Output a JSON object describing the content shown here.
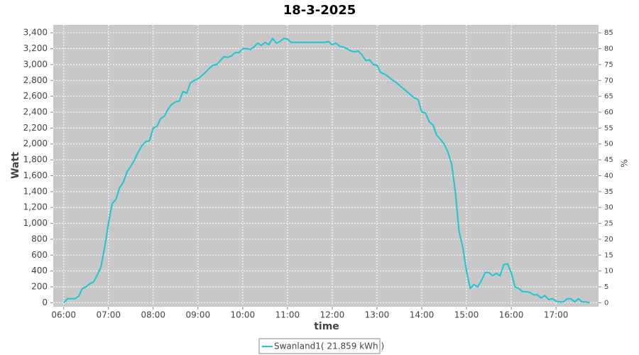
{
  "chart_data": {
    "type": "line",
    "title": "18-3-2025",
    "x_label": "time",
    "y_label": "Watt",
    "y2_label": "%",
    "x": [
      "06:00",
      "06:05",
      "06:10",
      "06:15",
      "06:20",
      "06:25",
      "06:30",
      "06:35",
      "06:40",
      "06:45",
      "06:50",
      "06:55",
      "07:00",
      "07:05",
      "07:10",
      "07:15",
      "07:20",
      "07:25",
      "07:30",
      "07:35",
      "07:40",
      "07:45",
      "07:50",
      "07:55",
      "08:00",
      "08:05",
      "08:10",
      "08:15",
      "08:20",
      "08:25",
      "08:30",
      "08:35",
      "08:40",
      "08:45",
      "08:50",
      "08:55",
      "09:00",
      "09:05",
      "09:10",
      "09:15",
      "09:20",
      "09:25",
      "09:30",
      "09:35",
      "09:40",
      "09:45",
      "09:50",
      "09:55",
      "10:00",
      "10:05",
      "10:10",
      "10:15",
      "10:20",
      "10:25",
      "10:30",
      "10:35",
      "10:40",
      "10:45",
      "10:50",
      "10:55",
      "11:00",
      "11:05",
      "11:10",
      "11:15",
      "11:20",
      "11:25",
      "11:30",
      "11:35",
      "11:40",
      "11:45",
      "11:50",
      "11:55",
      "12:00",
      "12:05",
      "12:10",
      "12:15",
      "12:20",
      "12:25",
      "12:30",
      "12:35",
      "12:40",
      "12:45",
      "12:50",
      "12:55",
      "13:00",
      "13:05",
      "13:10",
      "13:15",
      "13:20",
      "13:25",
      "13:30",
      "13:35",
      "13:40",
      "13:45",
      "13:50",
      "13:55",
      "14:00",
      "14:05",
      "14:10",
      "14:15",
      "14:20",
      "14:25",
      "14:30",
      "14:35",
      "14:40",
      "14:45",
      "14:50",
      "14:55",
      "15:00",
      "15:05",
      "15:10",
      "15:15",
      "15:20",
      "15:25",
      "15:30",
      "15:35",
      "15:40",
      "15:45",
      "15:50",
      "15:55",
      "16:00",
      "16:05",
      "16:10",
      "16:15",
      "16:20",
      "16:25",
      "16:30",
      "16:35",
      "16:40",
      "16:45",
      "16:50",
      "16:55",
      "17:00",
      "17:05",
      "17:10",
      "17:15",
      "17:20",
      "17:25",
      "17:30",
      "17:35",
      "17:40",
      "17:45"
    ],
    "series": [
      {
        "name": "Swanland1( 21.859 kWh )",
        "color": "#1cc6d0",
        "values": [
          0,
          50,
          50,
          50,
          80,
          180,
          200,
          240,
          260,
          350,
          450,
          700,
          1000,
          1250,
          1300,
          1450,
          1520,
          1650,
          1720,
          1800,
          1900,
          1980,
          2030,
          2040,
          2200,
          2220,
          2320,
          2350,
          2440,
          2500,
          2530,
          2540,
          2660,
          2640,
          2770,
          2800,
          2820,
          2860,
          2900,
          2950,
          2990,
          3000,
          3050,
          3100,
          3090,
          3110,
          3150,
          3150,
          3200,
          3200,
          3190,
          3220,
          3270,
          3240,
          3280,
          3250,
          3330,
          3270,
          3290,
          3330,
          3320,
          3280,
          3280,
          3280,
          3280,
          3280,
          3280,
          3280,
          3280,
          3280,
          3280,
          3290,
          3250,
          3270,
          3230,
          3220,
          3200,
          3170,
          3160,
          3170,
          3120,
          3050,
          3060,
          3000,
          2990,
          2900,
          2880,
          2850,
          2810,
          2780,
          2740,
          2700,
          2660,
          2620,
          2580,
          2560,
          2400,
          2390,
          2280,
          2240,
          2110,
          2060,
          2000,
          1900,
          1750,
          1400,
          900,
          700,
          400,
          180,
          230,
          200,
          280,
          380,
          380,
          340,
          370,
          340,
          480,
          490,
          380,
          200,
          180,
          140,
          140,
          130,
          100,
          100,
          60,
          90,
          40,
          50,
          20,
          10,
          10,
          50,
          50,
          10,
          50,
          10,
          10,
          0
        ]
      }
    ],
    "xlim": [
      "05:46",
      "17:57"
    ],
    "xticks": [
      "06:00",
      "07:00",
      "08:00",
      "09:00",
      "10:00",
      "11:00",
      "12:00",
      "13:00",
      "14:00",
      "15:00",
      "16:00",
      "17:00"
    ],
    "ylim": [
      -50,
      3500
    ],
    "yticks": [
      0,
      200,
      400,
      600,
      800,
      {
        "value": 1000,
        "label": "1,000"
      },
      {
        "value": 1200,
        "label": "1,200"
      },
      {
        "value": 1400,
        "label": "1,400"
      },
      {
        "value": 1600,
        "label": "1,600"
      },
      {
        "value": 1800,
        "label": "1,800"
      },
      {
        "value": 2000,
        "label": "2,000"
      },
      {
        "value": 2200,
        "label": "2,200"
      },
      {
        "value": 2400,
        "label": "2,400"
      },
      {
        "value": 2600,
        "label": "2,600"
      },
      {
        "value": 2800,
        "label": "2,800"
      },
      {
        "value": 3000,
        "label": "3,000"
      },
      {
        "value": 3200,
        "label": "3,200"
      },
      {
        "value": 3400,
        "label": "3,400"
      }
    ],
    "y2lim": [
      -1.25,
      87.5
    ],
    "y2ticks": [
      0,
      5,
      10,
      15,
      20,
      25,
      30,
      35,
      40,
      45,
      50,
      55,
      60,
      65,
      70,
      75,
      80,
      85
    ],
    "grid": true,
    "legend": "bottom"
  }
}
